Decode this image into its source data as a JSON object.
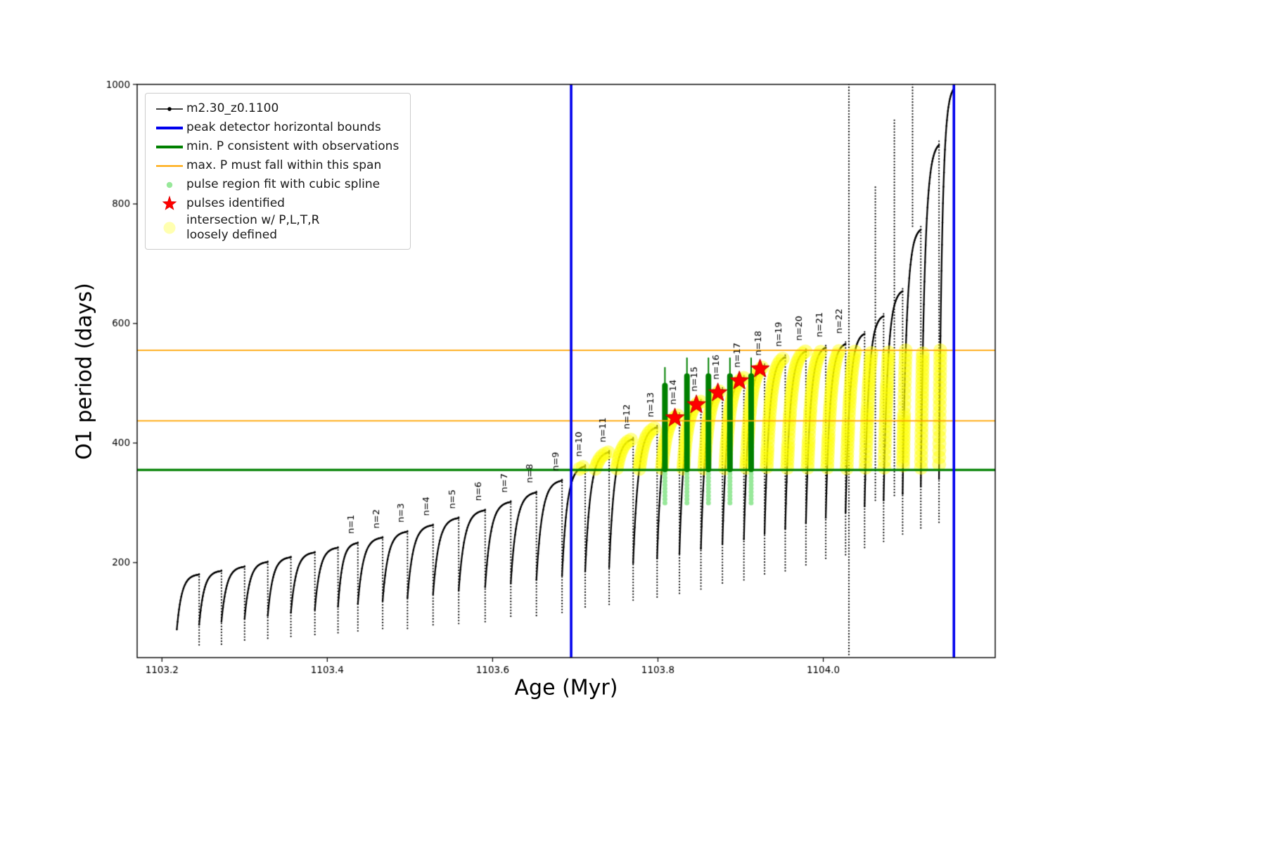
{
  "legend": {
    "items": [
      {
        "label": "m2.30_z0.1100",
        "marker": "line-dot"
      },
      {
        "label": "peak detector horizontal bounds",
        "marker": "blue-line"
      },
      {
        "label": "min. P consistent with observations",
        "marker": "green-line"
      },
      {
        "label": "max. P must fall within this span",
        "marker": "orange-line"
      },
      {
        "label": "pulse region fit with cubic spline",
        "marker": "green-dot"
      },
      {
        "label": "pulses identified",
        "marker": "red-star"
      },
      {
        "label": "intersection w/ P,L,T,R\nloosely defined",
        "marker": "yellow-dot"
      }
    ]
  },
  "chart_data": {
    "type": "line",
    "title": "",
    "xlabel": "Age (Myr)",
    "ylabel": "O1 period (days)",
    "series_label": "m2.30_z0.1100",
    "xlim": [
      1103.17,
      1104.208
    ],
    "ylim": [
      41,
      1000
    ],
    "x_ticks": [
      {
        "v": 1103.2,
        "label": "1103.2"
      },
      {
        "v": 1103.4,
        "label": "1103.4"
      },
      {
        "v": 1103.6,
        "label": "1103.6"
      },
      {
        "v": 1103.8,
        "label": "1103.8"
      },
      {
        "v": 1104.0,
        "label": "1104.0"
      }
    ],
    "y_ticks": [
      {
        "v": 200,
        "label": "200"
      },
      {
        "v": 400,
        "label": "400"
      },
      {
        "v": 600,
        "label": "600"
      },
      {
        "v": 800,
        "label": "800"
      },
      {
        "v": 1000,
        "label": "1000"
      }
    ],
    "x_start": 1103.218,
    "pulses": [
      {
        "label": null,
        "x_end": 1103.245,
        "peak": 181,
        "start": 88,
        "spike": 60
      },
      {
        "label": null,
        "x_end": 1103.272,
        "peak": 187,
        "start": 96,
        "spike": 63
      },
      {
        "label": null,
        "x_end": 1103.3,
        "peak": 194,
        "start": 101,
        "spike": 66
      },
      {
        "label": null,
        "x_end": 1103.328,
        "peak": 202,
        "start": 106,
        "spike": 69
      },
      {
        "label": null,
        "x_end": 1103.356,
        "peak": 210,
        "start": 111,
        "spike": 72
      },
      {
        "label": null,
        "x_end": 1103.385,
        "peak": 218,
        "start": 116,
        "spike": 75
      },
      {
        "label": null,
        "x_end": 1103.413,
        "peak": 226,
        "start": 121,
        "spike": 78
      },
      {
        "label": "n=1",
        "x_end": 1103.437,
        "peak": 234,
        "start": 126,
        "spike": 81
      },
      {
        "label": "n=2",
        "x_end": 1103.467,
        "peak": 243,
        "start": 131,
        "spike": 85
      },
      {
        "label": "n=3",
        "x_end": 1103.497,
        "peak": 253,
        "start": 136,
        "spike": 89
      },
      {
        "label": "n=4",
        "x_end": 1103.528,
        "peak": 264,
        "start": 141,
        "spike": 93
      },
      {
        "label": "n=5",
        "x_end": 1103.559,
        "peak": 276,
        "start": 147,
        "spike": 97
      },
      {
        "label": "n=6",
        "x_end": 1103.591,
        "peak": 289,
        "start": 153,
        "spike": 101
      },
      {
        "label": "n=7",
        "x_end": 1103.622,
        "peak": 303,
        "start": 159,
        "spike": 106
      },
      {
        "label": "n=8",
        "x_end": 1103.653,
        "peak": 319,
        "start": 165,
        "spike": 111
      },
      {
        "label": "n=9",
        "x_end": 1103.684,
        "peak": 339,
        "start": 171,
        "spike": 116
      },
      {
        "label": "n=10",
        "x_end": 1103.712,
        "peak": 363,
        "start": 178,
        "spike": 121
      },
      {
        "label": "n=11",
        "x_end": 1103.741,
        "peak": 387,
        "start": 185,
        "spike": 127
      },
      {
        "label": "n=12",
        "x_end": 1103.77,
        "peak": 409,
        "start": 192,
        "spike": 133
      },
      {
        "label": "n=13",
        "x_end": 1103.799,
        "peak": 429,
        "start": 199,
        "spike": 139
      },
      {
        "label": "n=14",
        "x_end": 1103.826,
        "peak": 450,
        "start": 207,
        "spike": 146
      },
      {
        "label": "n=15",
        "x_end": 1103.852,
        "peak": 472,
        "start": 215,
        "spike": 153
      },
      {
        "label": "n=16",
        "x_end": 1103.878,
        "peak": 492,
        "start": 223,
        "spike": 161
      },
      {
        "label": "n=17",
        "x_end": 1103.904,
        "peak": 512,
        "start": 231,
        "spike": 169
      },
      {
        "label": "n=18",
        "x_end": 1103.929,
        "peak": 532,
        "start": 239,
        "spike": 177
      },
      {
        "label": "n=19",
        "x_end": 1103.954,
        "peak": 547,
        "start": 248,
        "spike": 186
      },
      {
        "label": "n=20",
        "x_end": 1103.979,
        "peak": 557,
        "start": 257,
        "spike": 195
      },
      {
        "label": "n=21",
        "x_end": 1104.003,
        "peak": 563,
        "start": 266,
        "spike": 204
      },
      {
        "label": "n=22",
        "x_end": 1104.027,
        "peak": 569,
        "start": 275,
        "spike": 213
      },
      {
        "label": null,
        "x_end": 1104.05,
        "peak": 586,
        "start": 284,
        "spike": 222
      },
      {
        "label": null,
        "x_end": 1104.073,
        "peak": 616,
        "start": 294,
        "spike": 232
      },
      {
        "label": null,
        "x_end": 1104.096,
        "peak": 658,
        "start": 304,
        "spike": 243
      },
      {
        "label": null,
        "x_end": 1104.118,
        "peak": 762,
        "start": 315,
        "spike": 254
      },
      {
        "label": null,
        "x_end": 1104.14,
        "peak": 905,
        "start": 327,
        "spike": 266
      },
      {
        "label": null,
        "x_end": 1104.158,
        "peak": 1000,
        "start": 340,
        "spike": 280
      }
    ],
    "fit_pulses": [
      "n=14",
      "n=15",
      "n=16",
      "n=17",
      "n=18"
    ],
    "stars": [
      {
        "x": 1103.8205,
        "y": 442
      },
      {
        "x": 1103.8465,
        "y": 464
      },
      {
        "x": 1103.8725,
        "y": 484
      },
      {
        "x": 1103.8985,
        "y": 504
      },
      {
        "x": 1103.9235,
        "y": 524
      }
    ],
    "hlines": [
      {
        "y": 355,
        "color": "#008000",
        "width": 3.4
      },
      {
        "y": 437,
        "color": "#ffa500",
        "width": 1.7
      },
      {
        "y": 555,
        "color": "#ffa500",
        "width": 1.7
      }
    ],
    "vlines": [
      {
        "x": 1103.695,
        "color": "#0000ee",
        "width": 3.6
      },
      {
        "x": 1104.158,
        "color": "#0000ee",
        "width": 3.6
      }
    ],
    "upspikes": [
      {
        "x": 1104.031,
        "y0": 45,
        "y1": 1000
      },
      {
        "x": 1104.063,
        "y0": 300,
        "y1": 828
      },
      {
        "x": 1104.086,
        "y0": 310,
        "y1": 940
      },
      {
        "x": 1104.108,
        "y0": 760,
        "y1": 1000
      }
    ],
    "yellow_band": {
      "ymin": 357,
      "ymax": 556
    },
    "colors": {
      "series": "#000000",
      "yellow": "#ffff00",
      "fit_green": "#008000",
      "fit_lightgreen": "#98e89a",
      "star": "#ff0000"
    }
  }
}
